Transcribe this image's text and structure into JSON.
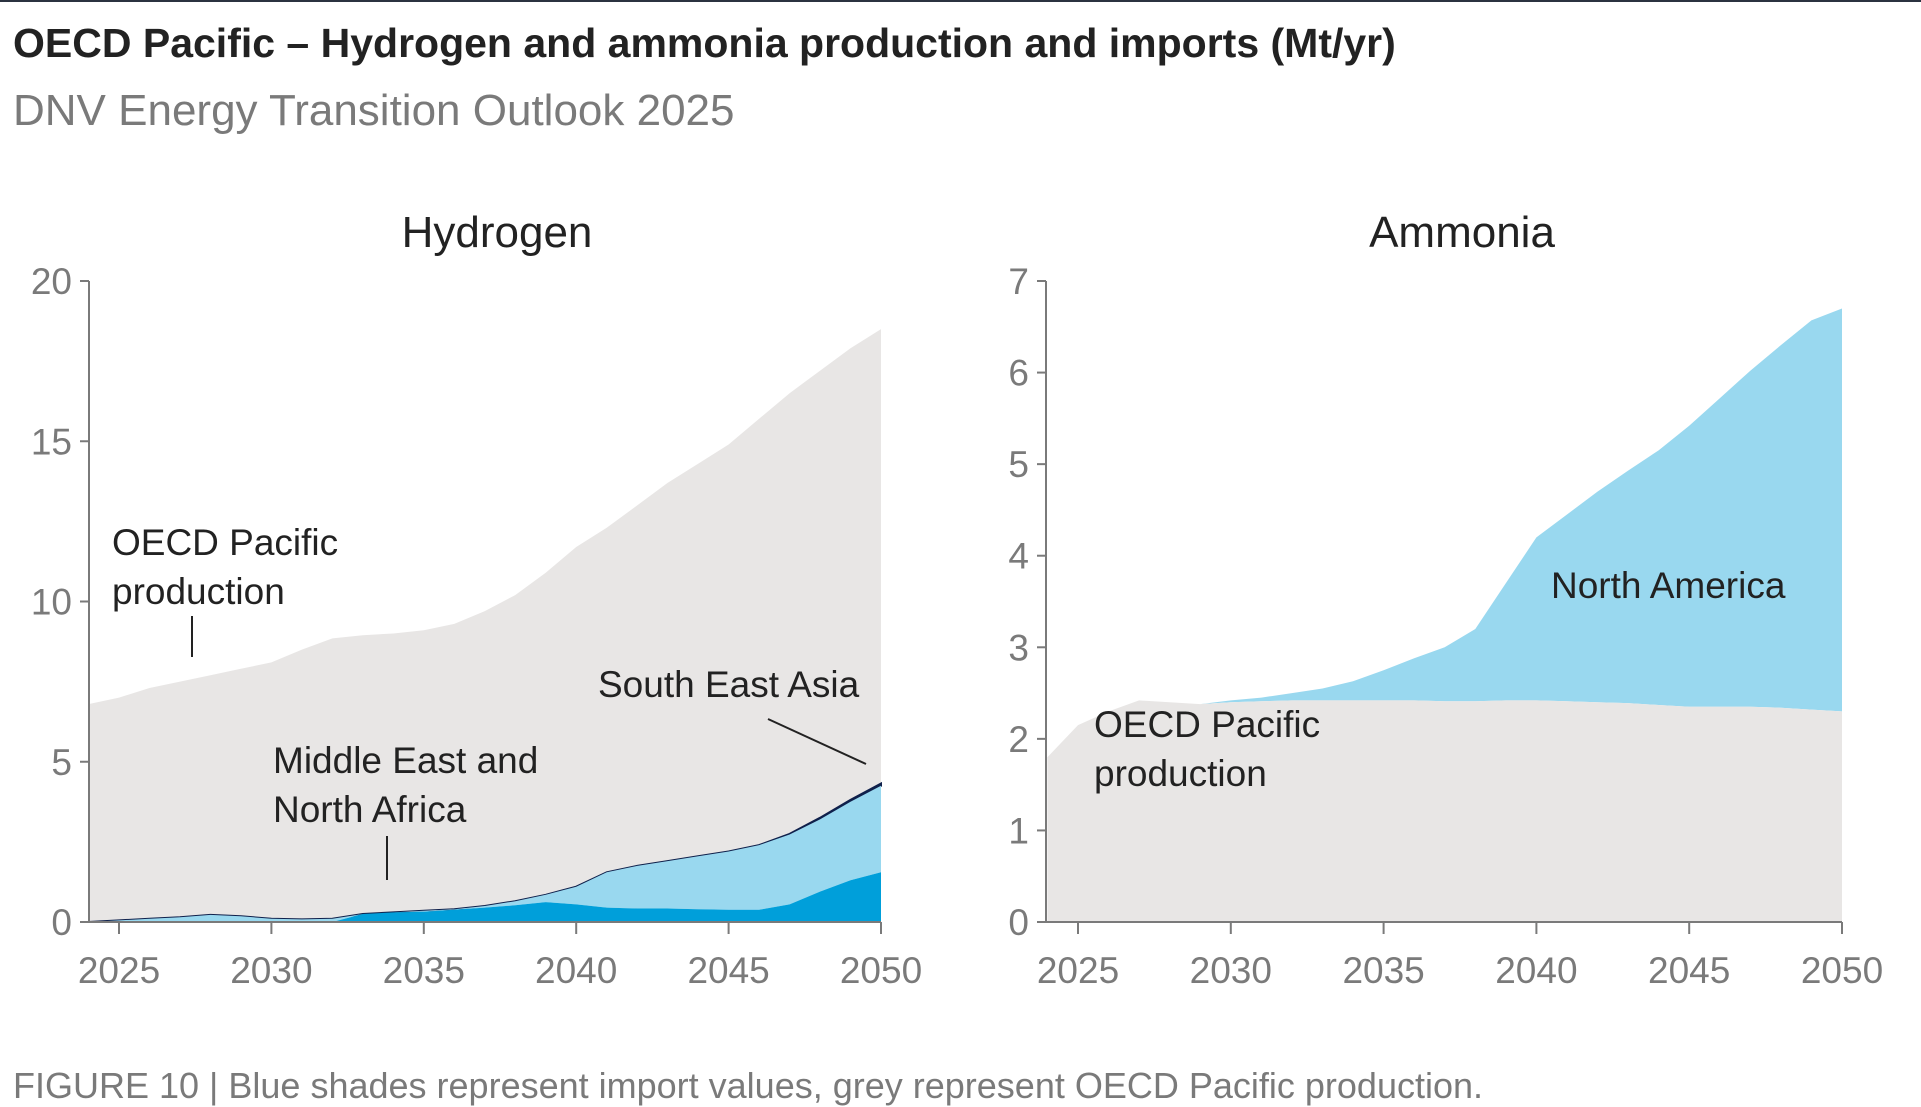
{
  "header": {
    "title": "OECD Pacific – Hydrogen and ammonia production and imports (Mt/yr)",
    "subtitle": "DNV Energy Transition Outlook 2025"
  },
  "caption": "FIGURE 10 | Blue shades represent import values, grey represent OECD Pacific production.",
  "colors": {
    "production": "#e8e6e5",
    "import_light": "#99d8ef",
    "import_dark": "#009fda",
    "import_navy": "#0f204b",
    "axis": "#7a7a7a"
  },
  "chart_data": [
    {
      "type": "area",
      "stacked": true,
      "title": "Hydrogen",
      "x": [
        2024,
        2025,
        2026,
        2027,
        2028,
        2029,
        2030,
        2031,
        2032,
        2033,
        2034,
        2035,
        2036,
        2037,
        2038,
        2039,
        2040,
        2041,
        2042,
        2043,
        2044,
        2045,
        2046,
        2047,
        2048,
        2049,
        2050
      ],
      "xticks": [
        2025,
        2030,
        2035,
        2040,
        2045,
        2050
      ],
      "xtick_labels": [
        "2025",
        "2030",
        "2035",
        "2040",
        "2045",
        "2050"
      ],
      "ylim": [
        0,
        20
      ],
      "yticks": [
        0,
        5,
        10,
        15,
        20
      ],
      "ytick_labels": [
        "0",
        "5",
        "10",
        "15",
        "20"
      ],
      "series": [
        {
          "key": "mena",
          "name": "Middle East and North Africa",
          "color": "#009fda",
          "values": [
            0,
            0,
            0,
            0,
            0,
            0,
            0,
            0,
            0,
            0.25,
            0.3,
            0.32,
            0.38,
            0.45,
            0.52,
            0.62,
            0.55,
            0.45,
            0.42,
            0.42,
            0.4,
            0.38,
            0.38,
            0.55,
            0.95,
            1.3,
            1.55
          ]
        },
        {
          "key": "other",
          "name": "",
          "color": "#99d8ef",
          "values": [
            0,
            0.05,
            0.1,
            0.15,
            0.22,
            0.18,
            0.1,
            0.08,
            0.1,
            0,
            0,
            0.03,
            0.02,
            0.05,
            0.13,
            0.23,
            0.55,
            1.1,
            1.33,
            1.48,
            1.65,
            1.82,
            2.02,
            2.18,
            2.25,
            2.45,
            2.7
          ]
        },
        {
          "key": "sea",
          "name": "South East Asia",
          "color": "#0f204b",
          "values": [
            0,
            0,
            0,
            0,
            0,
            0,
            0,
            0,
            0,
            0,
            0,
            0,
            0,
            0,
            0,
            0,
            0,
            0,
            0,
            0,
            0,
            0,
            0,
            0.02,
            0.05,
            0.06,
            0.07
          ]
        },
        {
          "key": "prod",
          "name": "OECD Pacific production",
          "color": "#e8e6e5",
          "values": [
            6.8,
            6.95,
            7.2,
            7.35,
            7.48,
            7.72,
            8.0,
            8.42,
            8.75,
            8.7,
            8.7,
            8.75,
            8.9,
            9.2,
            9.55,
            10.05,
            10.6,
            10.75,
            11.25,
            11.8,
            12.25,
            12.7,
            13.3,
            13.75,
            13.95,
            14.09,
            14.18
          ]
        }
      ],
      "annotations": [
        "OECD Pacific\nproduction",
        "Middle East and\nNorth Africa",
        "South East Asia"
      ]
    },
    {
      "type": "area",
      "stacked": true,
      "title": "Ammonia",
      "x": [
        2024,
        2025,
        2026,
        2027,
        2028,
        2029,
        2030,
        2031,
        2032,
        2033,
        2034,
        2035,
        2036,
        2037,
        2038,
        2039,
        2040,
        2041,
        2042,
        2043,
        2044,
        2045,
        2046,
        2047,
        2048,
        2049,
        2050
      ],
      "xticks": [
        2025,
        2030,
        2035,
        2040,
        2045,
        2050
      ],
      "xtick_labels": [
        "2025",
        "2030",
        "2035",
        "2040",
        "2045",
        "2050"
      ],
      "ylim": [
        0,
        7
      ],
      "yticks": [
        0,
        1,
        2,
        3,
        4,
        5,
        6,
        7
      ],
      "ytick_labels": [
        "0",
        "1",
        "2",
        "3",
        "4",
        "5",
        "6",
        "7"
      ],
      "series": [
        {
          "key": "prod",
          "name": "OECD Pacific production",
          "color": "#e8e6e5",
          "values": [
            1.8,
            2.15,
            2.3,
            2.42,
            2.4,
            2.38,
            2.4,
            2.41,
            2.42,
            2.42,
            2.42,
            2.42,
            2.42,
            2.41,
            2.41,
            2.42,
            2.42,
            2.41,
            2.4,
            2.39,
            2.37,
            2.35,
            2.35,
            2.35,
            2.34,
            2.32,
            2.3
          ]
        },
        {
          "key": "na",
          "name": "North America",
          "color": "#99d8ef",
          "values": [
            0,
            0,
            0,
            0,
            0,
            0,
            0.02,
            0.04,
            0.08,
            0.13,
            0.21,
            0.33,
            0.46,
            0.59,
            0.79,
            1.28,
            1.78,
            2.04,
            2.3,
            2.54,
            2.78,
            3.07,
            3.37,
            3.67,
            3.96,
            4.25,
            4.4
          ]
        }
      ],
      "annotations": [
        "OECD Pacific\nproduction",
        "North America"
      ]
    }
  ]
}
